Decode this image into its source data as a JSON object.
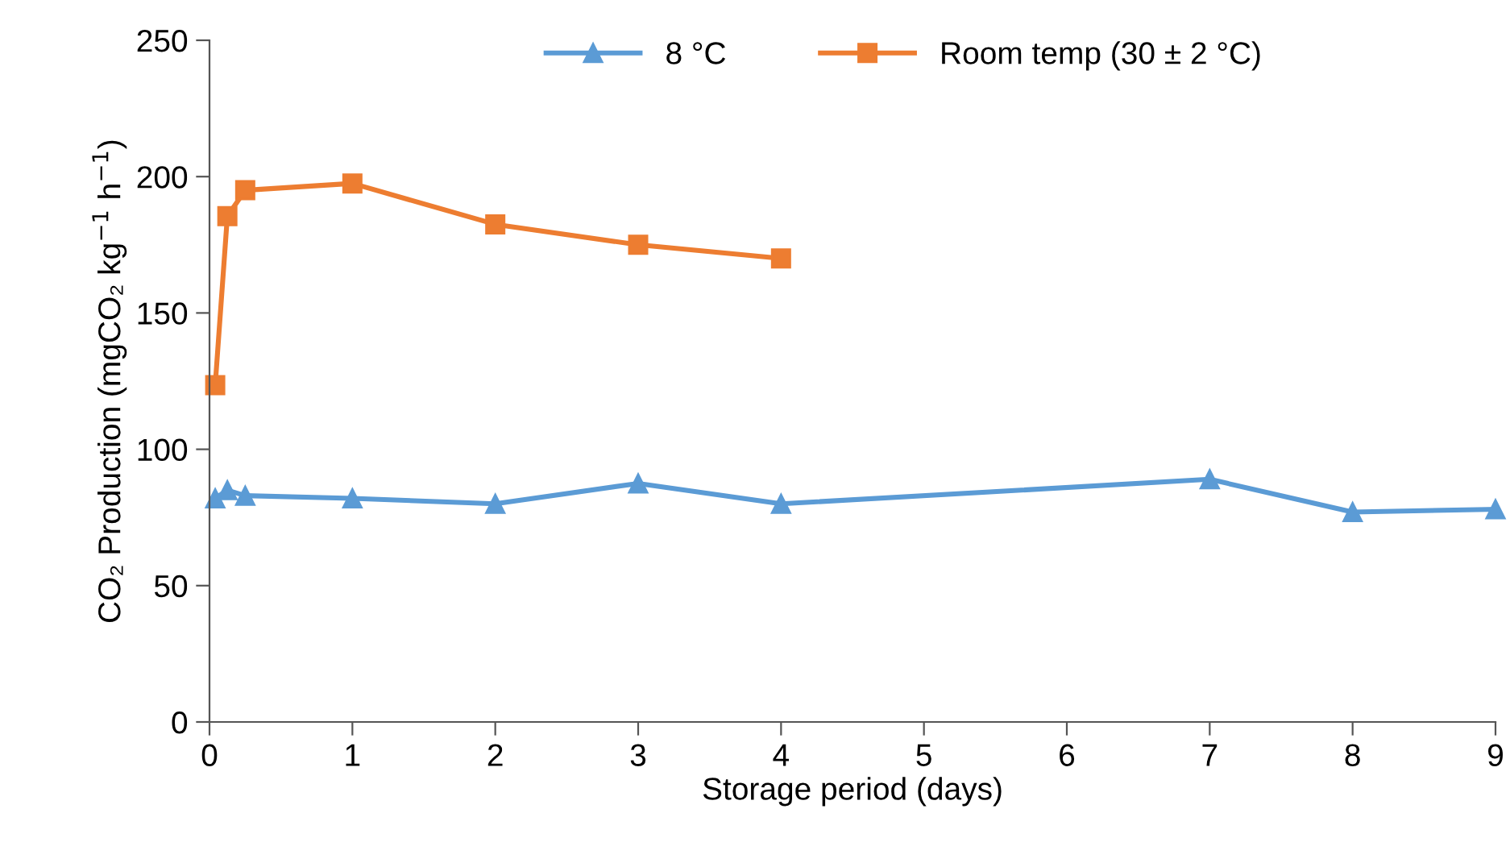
{
  "chart_data": {
    "type": "line",
    "xlabel": "Storage period (days)",
    "ylabel": "CO₂ Production (mgCO₂ kg$^{−1}$ h$^{−1}$)",
    "series": [
      {
        "name": "8 °C",
        "color": "#5b9bd5",
        "marker": "triangle",
        "x": [
          0.04,
          0.125,
          0.25,
          1,
          2,
          3,
          4,
          7,
          8,
          9
        ],
        "values": [
          82,
          85,
          83,
          82,
          80,
          87.5,
          80,
          89,
          77,
          78
        ]
      },
      {
        "name": "Room temp (30 ± 2 °C)",
        "color": "#ed7d31",
        "marker": "square",
        "x": [
          0.04,
          0.125,
          0.25,
          1,
          2,
          3,
          4
        ],
        "values": [
          123.5,
          185.5,
          195,
          197.5,
          182.5,
          175,
          170
        ]
      }
    ],
    "xlim": [
      0,
      9
    ],
    "xticks": [
      0,
      1,
      2,
      3,
      4,
      5,
      6,
      7,
      8,
      9
    ],
    "ylim": [
      0,
      250
    ],
    "yticks": [
      0,
      50,
      100,
      150,
      200,
      250
    ],
    "grid": false,
    "legend": "top",
    "line_style": "solid"
  }
}
